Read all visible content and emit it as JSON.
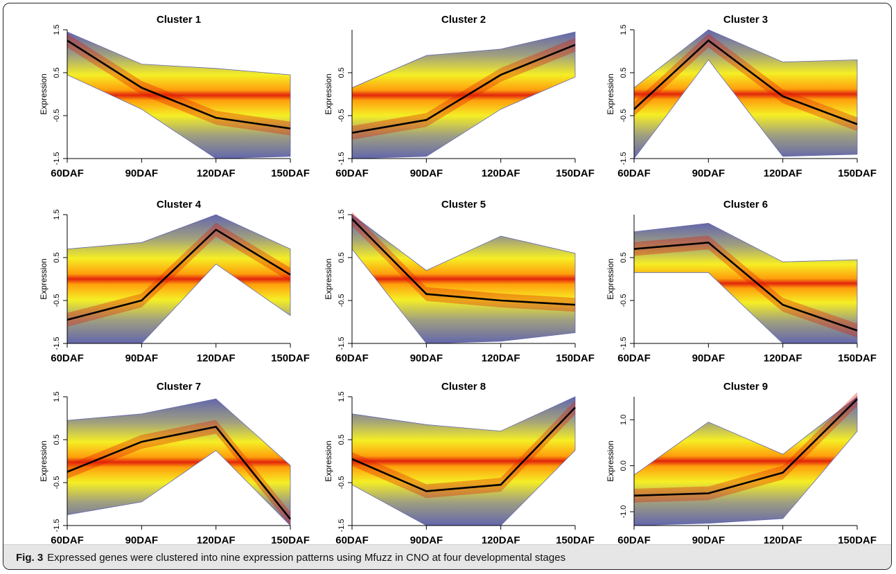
{
  "caption": {
    "label": "Fig. 3",
    "text": "Expressed genes were clustered into nine expression patterns using Mfuzz in CNO at four developmental stages"
  },
  "colors": {
    "membership_low": "#5b5fa8",
    "membership_mid": "#f5ee1a",
    "membership_high": "#e01a00",
    "centroid": "#000000",
    "caption_bg": "#e6e6e6"
  },
  "chart_data": [
    {
      "type": "line",
      "title": "Cluster 1",
      "ylabel": "Expression",
      "categories": [
        "60DAF",
        "90DAF",
        "120DAF",
        "150DAF"
      ],
      "ylim": [
        -1.5,
        1.5
      ],
      "yticks": [
        1.5,
        0.5,
        -0.5,
        -1.5
      ],
      "yticklabels": [
        "1.5",
        "0.5",
        "-0.5",
        "-1.5"
      ],
      "centroid": [
        1.25,
        0.15,
        -0.55,
        -0.8
      ],
      "band_min": [
        0.45,
        -0.35,
        -1.5,
        -1.45
      ],
      "band_max": [
        1.45,
        0.7,
        0.6,
        0.45
      ]
    },
    {
      "type": "line",
      "title": "Cluster 2",
      "ylabel": "Expression",
      "categories": [
        "60DAF",
        "90DAF",
        "120DAF",
        "150DAF"
      ],
      "ylim": [
        -1.5,
        1.5
      ],
      "yticks": [
        0.5,
        -0.5,
        -1.5
      ],
      "yticklabels": [
        "0.5",
        "-0.5",
        "-1.5"
      ],
      "centroid": [
        -0.9,
        -0.6,
        0.45,
        1.15
      ],
      "band_min": [
        -1.5,
        -1.45,
        -0.35,
        0.4
      ],
      "band_max": [
        0.15,
        0.9,
        1.05,
        1.45
      ]
    },
    {
      "type": "line",
      "title": "Cluster 3",
      "ylabel": "Expression",
      "categories": [
        "60DAF",
        "90DAF",
        "120DAF",
        "150DAF"
      ],
      "ylim": [
        -1.5,
        1.5
      ],
      "yticks": [
        1.5,
        0.5,
        -0.5,
        -1.5
      ],
      "yticklabels": [
        "1.5",
        "0.5",
        "-0.5",
        "-1.5"
      ],
      "centroid": [
        -0.35,
        1.25,
        -0.05,
        -0.7
      ],
      "band_min": [
        -1.5,
        0.8,
        -1.45,
        -1.4
      ],
      "band_max": [
        0.15,
        1.5,
        0.75,
        0.8
      ]
    },
    {
      "type": "line",
      "title": "Cluster 4",
      "ylabel": "Expression",
      "categories": [
        "60DAF",
        "90DAF",
        "120DAF",
        "150DAF"
      ],
      "ylim": [
        -1.5,
        1.5
      ],
      "yticks": [
        1.5,
        0.5,
        -0.5,
        -1.5
      ],
      "yticklabels": [
        "1.5",
        "0.5",
        "-0.5",
        "-1.5"
      ],
      "centroid": [
        -0.95,
        -0.5,
        1.15,
        0.1
      ],
      "band_min": [
        -1.5,
        -1.5,
        0.35,
        -0.85
      ],
      "band_max": [
        0.7,
        0.85,
        1.5,
        0.7
      ]
    },
    {
      "type": "line",
      "title": "Cluster 5",
      "ylabel": "Expression",
      "categories": [
        "60DAF",
        "90DAF",
        "120DAF",
        "150DAF"
      ],
      "ylim": [
        -1.5,
        1.5
      ],
      "yticks": [
        1.5,
        0.5,
        -0.5,
        -1.5
      ],
      "yticklabels": [
        "1.5",
        "0.5",
        "-0.5",
        "-1.5"
      ],
      "centroid": [
        1.4,
        -0.35,
        -0.5,
        -0.6
      ],
      "band_min": [
        0.7,
        -1.5,
        -1.45,
        -1.25
      ],
      "band_max": [
        1.5,
        0.2,
        1.0,
        0.6
      ]
    },
    {
      "type": "line",
      "title": "Cluster 6",
      "ylabel": "Expression",
      "categories": [
        "60DAF",
        "90DAF",
        "120DAF",
        "150DAF"
      ],
      "ylim": [
        -1.5,
        1.5
      ],
      "yticks": [
        0.5,
        -0.5,
        -1.5
      ],
      "yticklabels": [
        "0.5",
        "-0.5",
        "-1.5"
      ],
      "centroid": [
        0.7,
        0.85,
        -0.6,
        -1.2
      ],
      "band_min": [
        0.15,
        0.15,
        -1.5,
        -1.5
      ],
      "band_max": [
        1.1,
        1.3,
        0.4,
        0.45
      ]
    },
    {
      "type": "line",
      "title": "Cluster 7",
      "ylabel": "Expression",
      "categories": [
        "60DAF",
        "90DAF",
        "120DAF",
        "150DAF"
      ],
      "ylim": [
        -1.5,
        1.5
      ],
      "yticks": [
        1.5,
        0.5,
        -0.5,
        -1.5
      ],
      "yticklabels": [
        "1.5",
        "0.5",
        "-0.5",
        "-1.5"
      ],
      "centroid": [
        -0.25,
        0.45,
        0.8,
        -1.35
      ],
      "band_min": [
        -1.25,
        -0.95,
        0.25,
        -1.5
      ],
      "band_max": [
        0.95,
        1.1,
        1.45,
        -0.1
      ]
    },
    {
      "type": "line",
      "title": "Cluster 8",
      "ylabel": "Expression",
      "categories": [
        "60DAF",
        "90DAF",
        "120DAF",
        "150DAF"
      ],
      "ylim": [
        -1.5,
        1.5
      ],
      "yticks": [
        1.5,
        0.5,
        -0.5,
        -1.5
      ],
      "yticklabels": [
        "1.5",
        "0.5",
        "-0.5",
        "-1.5"
      ],
      "centroid": [
        0.05,
        -0.7,
        -0.55,
        1.25
      ],
      "band_min": [
        -0.55,
        -1.5,
        -1.5,
        0.25
      ],
      "band_max": [
        1.1,
        0.85,
        0.7,
        1.5
      ]
    },
    {
      "type": "line",
      "title": "Cluster 9",
      "ylabel": "Expression",
      "categories": [
        "60DAF",
        "90DAF",
        "120DAF",
        "150DAF"
      ],
      "ylim": [
        -1.3,
        1.5
      ],
      "yticks": [
        1.0,
        0.0,
        -1.0
      ],
      "yticklabels": [
        "1.0",
        "0.0",
        "-1.0"
      ],
      "centroid": [
        -0.65,
        -0.6,
        -0.15,
        1.45
      ],
      "band_min": [
        -1.3,
        -1.25,
        -1.15,
        0.75
      ],
      "band_max": [
        -0.2,
        0.95,
        0.25,
        1.5
      ]
    }
  ]
}
